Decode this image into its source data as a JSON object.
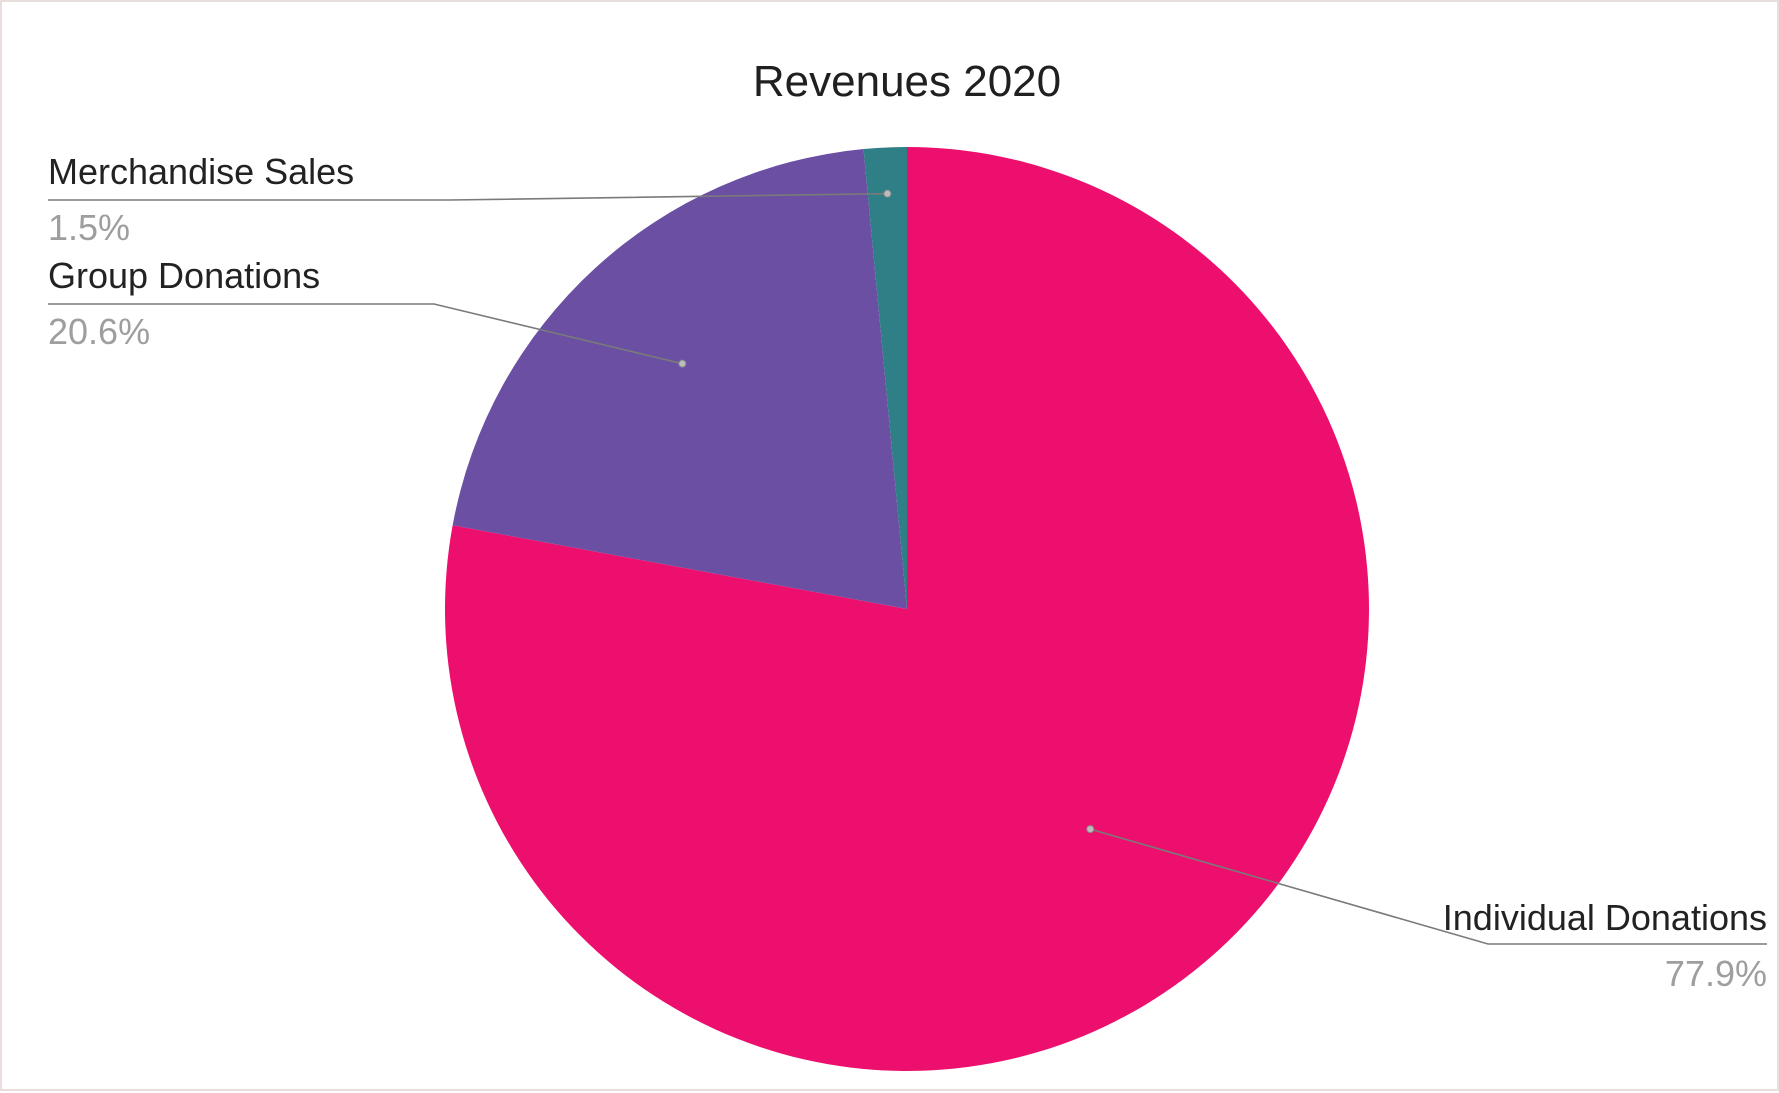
{
  "chart_data": {
    "type": "pie",
    "title": "Revenues 2020",
    "slices": [
      {
        "label": "Individual Donations",
        "value": 77.9,
        "value_label": "77.9%",
        "color": "#ec0f6d"
      },
      {
        "label": "Group Donations",
        "value": 20.6,
        "value_label": "20.6%",
        "color": "#6a4fa3"
      },
      {
        "label": "Merchandise Sales",
        "value": 1.5,
        "value_label": "1.5%",
        "color": "#2f7f86"
      }
    ],
    "start_angle": "12 o'clock",
    "direction": "clockwise",
    "legend": "none",
    "labels": "outside with leader lines"
  }
}
